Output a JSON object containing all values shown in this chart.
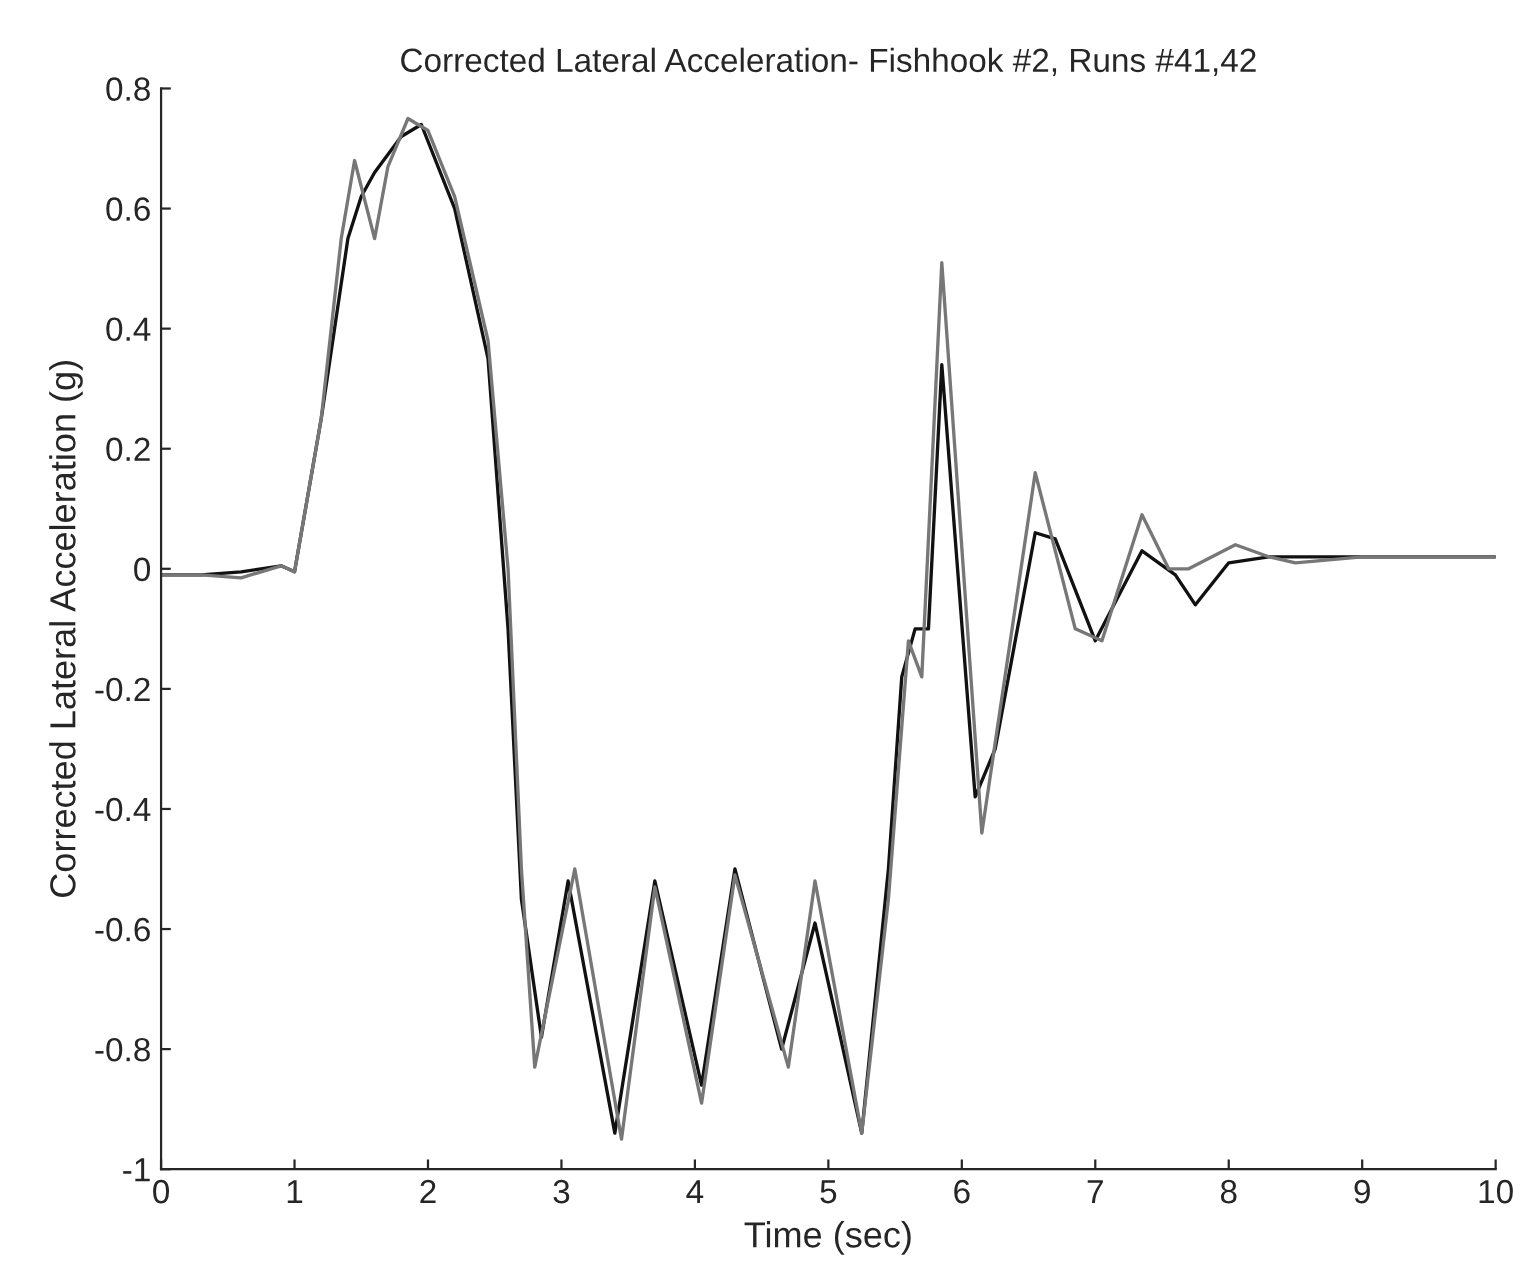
{
  "chart_data": {
    "type": "line",
    "title": "Corrected Lateral Acceleration- Fishhook #2, Runs #41,42",
    "xlabel": "Time (sec)",
    "ylabel": "Corrected Lateral Acceleration (g)",
    "xlim": [
      0,
      10
    ],
    "ylim": [
      -1,
      0.8
    ],
    "xticks": [
      0,
      1,
      2,
      3,
      4,
      5,
      6,
      7,
      8,
      9,
      10
    ],
    "yticks": [
      -1,
      -0.8,
      -0.6,
      -0.4,
      -0.2,
      0,
      0.2,
      0.4,
      0.6,
      0.8
    ],
    "grid": false,
    "legend": false,
    "line_style": "solid",
    "marker": "none",
    "series": [
      {
        "color": "#111111",
        "x": [
          0,
          0.3,
          0.6,
          0.9,
          1.0,
          1.2,
          1.4,
          1.5,
          1.6,
          1.8,
          1.95,
          2.2,
          2.45,
          2.6,
          2.7,
          2.85,
          3.05,
          3.4,
          3.7,
          4.05,
          4.3,
          4.65,
          4.9,
          5.25,
          5.45,
          5.55,
          5.65,
          5.75,
          5.85,
          6.1,
          6.25,
          6.55,
          6.7,
          7.0,
          7.35,
          7.6,
          7.75,
          8.0,
          8.3,
          9.0,
          10.0
        ],
        "values": [
          -0.01,
          -0.01,
          -0.005,
          0.005,
          -0.005,
          0.25,
          0.55,
          0.62,
          0.66,
          0.72,
          0.74,
          0.6,
          0.35,
          -0.1,
          -0.55,
          -0.78,
          -0.52,
          -0.94,
          -0.52,
          -0.86,
          -0.5,
          -0.8,
          -0.59,
          -0.94,
          -0.5,
          -0.18,
          -0.1,
          -0.1,
          0.34,
          -0.38,
          -0.3,
          0.06,
          0.05,
          -0.12,
          0.03,
          -0.01,
          -0.06,
          0.01,
          0.02,
          0.02,
          0.02
        ]
      },
      {
        "color": "#777777",
        "x": [
          0,
          0.3,
          0.6,
          0.9,
          1.0,
          1.2,
          1.35,
          1.45,
          1.6,
          1.7,
          1.85,
          2.0,
          2.2,
          2.45,
          2.6,
          2.7,
          2.8,
          3.1,
          3.45,
          3.7,
          4.05,
          4.3,
          4.7,
          4.9,
          5.25,
          5.45,
          5.6,
          5.7,
          5.85,
          6.15,
          6.55,
          6.85,
          7.05,
          7.35,
          7.55,
          7.7,
          8.05,
          8.3,
          8.5,
          9.0,
          10.0
        ],
        "values": [
          -0.01,
          -0.01,
          -0.015,
          0.005,
          -0.005,
          0.25,
          0.55,
          0.68,
          0.55,
          0.67,
          0.75,
          0.73,
          0.62,
          0.38,
          0.0,
          -0.5,
          -0.83,
          -0.5,
          -0.95,
          -0.53,
          -0.89,
          -0.51,
          -0.83,
          -0.52,
          -0.94,
          -0.55,
          -0.12,
          -0.18,
          0.51,
          -0.44,
          0.16,
          -0.1,
          -0.12,
          0.09,
          0.0,
          0.0,
          0.04,
          0.02,
          0.01,
          0.02,
          0.02
        ]
      }
    ]
  }
}
